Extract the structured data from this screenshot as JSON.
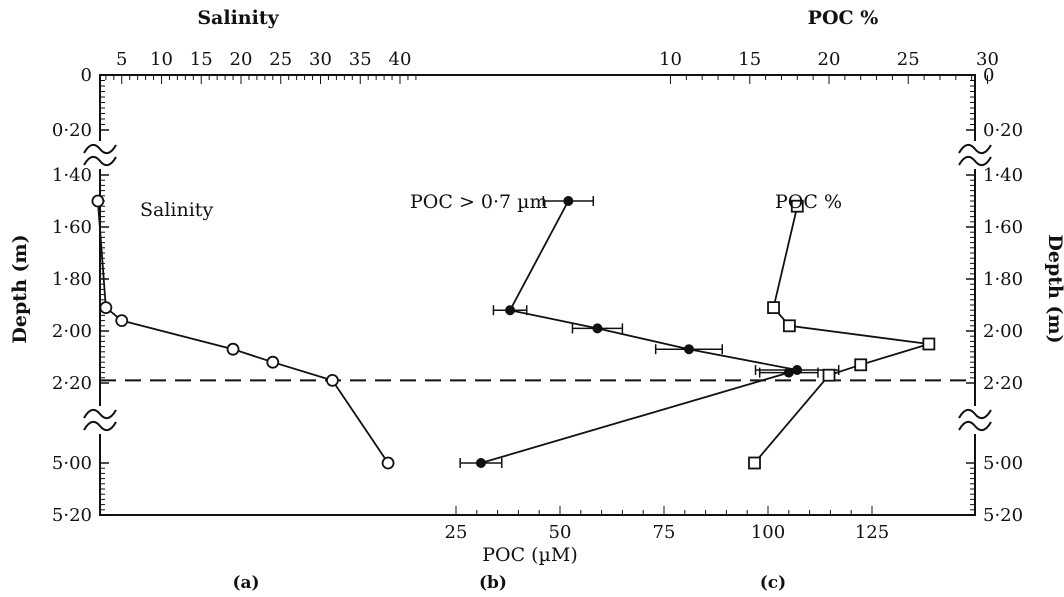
{
  "chart_data": [
    {
      "type": "line",
      "panel_label": "(a)",
      "top_axis_title": "Salinity",
      "series_label": "Salinity",
      "x_ticks": [
        5,
        10,
        15,
        20,
        25,
        30,
        35,
        40
      ],
      "points": [
        {
          "x": 2,
          "y": 1.5
        },
        {
          "x": 3,
          "y": 1.91
        },
        {
          "x": 5,
          "y": 1.96
        },
        {
          "x": 19,
          "y": 2.07
        },
        {
          "x": 24,
          "y": 2.12
        },
        {
          "x": 31.5,
          "y": 2.19
        },
        {
          "x": 38.5,
          "y": 5.0
        }
      ]
    },
    {
      "type": "line",
      "panel_label": "(b)",
      "bottom_axis_title": "POC (µM)",
      "series_label": "POC > 0·7 µm",
      "x_ticks": [
        25,
        50,
        75,
        100,
        125
      ],
      "points": [
        {
          "x": 52,
          "y": 1.5,
          "err": 6
        },
        {
          "x": 38,
          "y": 1.92,
          "err": 4
        },
        {
          "x": 59,
          "y": 1.99,
          "err": 6
        },
        {
          "x": 81,
          "y": 2.07,
          "err": 8
        },
        {
          "x": 107,
          "y": 2.15,
          "err": 10
        },
        {
          "x": 105,
          "y": 2.16,
          "err": 7
        },
        {
          "x": 31,
          "y": 5.0,
          "err": 5
        }
      ]
    },
    {
      "type": "line",
      "panel_label": "(c)",
      "top_axis_title": "POC %",
      "series_label": "POC %",
      "x_ticks": [
        10,
        15,
        20,
        25,
        30
      ],
      "points": [
        {
          "x": 18,
          "y": 1.52
        },
        {
          "x": 16.5,
          "y": 1.91
        },
        {
          "x": 17.5,
          "y": 1.98
        },
        {
          "x": 26.3,
          "y": 2.05
        },
        {
          "x": 22,
          "y": 2.13
        },
        {
          "x": 20,
          "y": 2.17
        },
        {
          "x": 15.3,
          "y": 5.0
        }
      ]
    }
  ],
  "depth_axis": {
    "title": "Depth (m)",
    "tick_labels": [
      "0",
      "0·20",
      "1·40",
      "1·60",
      "1·80",
      "2·00",
      "2·20",
      "5·00",
      "5·20"
    ],
    "tick_values": [
      0,
      0.2,
      1.4,
      1.6,
      1.8,
      2.0,
      2.2,
      5.0,
      5.2
    ],
    "axis_breaks": [
      "0·20–1·40",
      "2·20–5·00"
    ]
  },
  "reference_line": {
    "depth": 2.19,
    "style": "dashed"
  }
}
